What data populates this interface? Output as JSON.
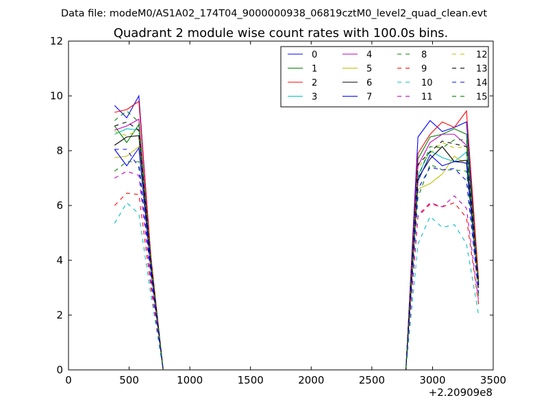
{
  "figure": {
    "suptitle": "Data file: modeM0/AS1A02_174T04_9000000938_06819cztM0_level2_quad_clean.evt"
  },
  "chart_data": {
    "type": "line",
    "title": "Quadrant 2 module wise count rates with 100.0s bins.",
    "xlabel": "",
    "ylabel": "",
    "x_offset_label": "+2.20909e8",
    "xlim": [
      0,
      3500
    ],
    "ylim": [
      0,
      12
    ],
    "xticks": [
      0,
      500,
      1000,
      1500,
      2000,
      2500,
      3000,
      3500
    ],
    "yticks": [
      0,
      2,
      4,
      6,
      8,
      10,
      12
    ],
    "grid": false,
    "legend": {
      "placement": "top-right",
      "columns": 4
    },
    "x": [
      380,
      480,
      580,
      680,
      780,
      880,
      980,
      1080,
      1180,
      1280,
      1380,
      1480,
      1580,
      1680,
      1780,
      1880,
      1980,
      2080,
      2180,
      2280,
      2380,
      2480,
      2580,
      2680,
      2780,
      2880,
      2980,
      3080,
      3180,
      3280,
      3380
    ],
    "series": [
      {
        "name": "0",
        "color": "#0000ff",
        "dash": "solid",
        "values": [
          9.65,
          9.2,
          10.0,
          4.0,
          0,
          0,
          0,
          0,
          0,
          0,
          0,
          0,
          0,
          0,
          0,
          0,
          0,
          0,
          0,
          0,
          0,
          0,
          0,
          0,
          0,
          8.5,
          9.1,
          8.7,
          8.85,
          9.05,
          3.2
        ]
      },
      {
        "name": "1",
        "color": "#008000",
        "dash": "solid",
        "values": [
          8.9,
          8.3,
          8.95,
          3.9,
          0,
          0,
          0,
          0,
          0,
          0,
          0,
          0,
          0,
          0,
          0,
          0,
          0,
          0,
          0,
          0,
          0,
          0,
          0,
          0,
          0,
          7.7,
          8.5,
          8.6,
          8.8,
          8.6,
          3.1
        ]
      },
      {
        "name": "2",
        "color": "#ff0000",
        "dash": "solid",
        "values": [
          9.4,
          9.5,
          9.8,
          4.1,
          0,
          0,
          0,
          0,
          0,
          0,
          0,
          0,
          0,
          0,
          0,
          0,
          0,
          0,
          0,
          0,
          0,
          0,
          0,
          0,
          0,
          7.9,
          8.6,
          9.05,
          8.85,
          9.45,
          3.3
        ]
      },
      {
        "name": "3",
        "color": "#00bfbf",
        "dash": "solid",
        "values": [
          8.6,
          8.8,
          8.75,
          3.9,
          0,
          0,
          0,
          0,
          0,
          0,
          0,
          0,
          0,
          0,
          0,
          0,
          0,
          0,
          0,
          0,
          0,
          0,
          0,
          0,
          0,
          7.1,
          8.0,
          7.75,
          7.6,
          7.95,
          3.0
        ]
      },
      {
        "name": "4",
        "color": "#bf00bf",
        "dash": "solid",
        "values": [
          8.75,
          8.9,
          9.15,
          3.9,
          0,
          0,
          0,
          0,
          0,
          0,
          0,
          0,
          0,
          0,
          0,
          0,
          0,
          0,
          0,
          0,
          0,
          0,
          0,
          0,
          0,
          7.45,
          8.3,
          8.6,
          8.6,
          8.2,
          3.1
        ]
      },
      {
        "name": "5",
        "color": "#bfbf00",
        "dash": "solid",
        "values": [
          7.75,
          7.8,
          8.15,
          3.6,
          0,
          0,
          0,
          0,
          0,
          0,
          0,
          0,
          0,
          0,
          0,
          0,
          0,
          0,
          0,
          0,
          0,
          0,
          0,
          0,
          0,
          6.6,
          6.8,
          7.15,
          7.8,
          7.5,
          3.0
        ]
      },
      {
        "name": "6",
        "color": "#000000",
        "dash": "solid",
        "values": [
          8.2,
          8.5,
          8.55,
          3.7,
          0,
          0,
          0,
          0,
          0,
          0,
          0,
          0,
          0,
          0,
          0,
          0,
          0,
          0,
          0,
          0,
          0,
          0,
          0,
          0,
          0,
          7.0,
          7.7,
          8.15,
          7.6,
          7.65,
          3.15
        ]
      },
      {
        "name": "7",
        "color": "#0000ff",
        "dash": "solid",
        "values": [
          8.05,
          7.45,
          8.1,
          3.6,
          0,
          0,
          0,
          0,
          0,
          0,
          0,
          0,
          0,
          0,
          0,
          0,
          0,
          0,
          0,
          0,
          0,
          0,
          0,
          0,
          0,
          6.9,
          7.85,
          7.45,
          7.6,
          7.55,
          3.0
        ]
      },
      {
        "name": "8",
        "color": "#008000",
        "dash": "dashed",
        "values": [
          7.25,
          7.6,
          7.6,
          3.4,
          0,
          0,
          0,
          0,
          0,
          0,
          0,
          0,
          0,
          0,
          0,
          0,
          0,
          0,
          0,
          0,
          0,
          0,
          0,
          0,
          0,
          6.3,
          7.5,
          7.3,
          7.3,
          7.25,
          2.7
        ]
      },
      {
        "name": "9",
        "color": "#ff0000",
        "dash": "dashed",
        "values": [
          6.0,
          6.45,
          6.4,
          3.0,
          0,
          0,
          0,
          0,
          0,
          0,
          0,
          0,
          0,
          0,
          0,
          0,
          0,
          0,
          0,
          0,
          0,
          0,
          0,
          0,
          0,
          5.6,
          6.05,
          5.95,
          6.1,
          5.55,
          2.4
        ]
      },
      {
        "name": "10",
        "color": "#00bfbf",
        "dash": "dashed",
        "values": [
          5.35,
          6.1,
          5.7,
          2.7,
          0,
          0,
          0,
          0,
          0,
          0,
          0,
          0,
          0,
          0,
          0,
          0,
          0,
          0,
          0,
          0,
          0,
          0,
          0,
          0,
          0,
          4.6,
          5.6,
          5.2,
          5.3,
          4.6,
          2.0
        ]
      },
      {
        "name": "11",
        "color": "#bf00bf",
        "dash": "dashed",
        "values": [
          7.0,
          7.25,
          7.1,
          3.2,
          0,
          0,
          0,
          0,
          0,
          0,
          0,
          0,
          0,
          0,
          0,
          0,
          0,
          0,
          0,
          0,
          0,
          0,
          0,
          0,
          0,
          5.65,
          6.1,
          5.95,
          6.35,
          5.9,
          2.5
        ]
      },
      {
        "name": "12",
        "color": "#bfbf00",
        "dash": "dashed",
        "values": [
          8.7,
          8.55,
          8.75,
          3.8,
          0,
          0,
          0,
          0,
          0,
          0,
          0,
          0,
          0,
          0,
          0,
          0,
          0,
          0,
          0,
          0,
          0,
          0,
          0,
          0,
          0,
          7.4,
          7.9,
          8.3,
          8.1,
          8.15,
          3.05
        ]
      },
      {
        "name": "13",
        "color": "#000000",
        "dash": "dashed",
        "values": [
          8.9,
          9.05,
          8.75,
          3.9,
          0,
          0,
          0,
          0,
          0,
          0,
          0,
          0,
          0,
          0,
          0,
          0,
          0,
          0,
          0,
          0,
          0,
          0,
          0,
          0,
          0,
          7.5,
          7.95,
          8.35,
          8.25,
          8.15,
          3.1
        ]
      },
      {
        "name": "14",
        "color": "#0000ff",
        "dash": "dashed",
        "values": [
          8.05,
          8.05,
          7.4,
          3.5,
          0,
          0,
          0,
          0,
          0,
          0,
          0,
          0,
          0,
          0,
          0,
          0,
          0,
          0,
          0,
          0,
          0,
          0,
          0,
          0,
          0,
          6.6,
          7.4,
          7.3,
          7.35,
          6.9,
          2.8
        ]
      },
      {
        "name": "15",
        "color": "#008000",
        "dash": "dashed",
        "values": [
          9.1,
          9.45,
          9.05,
          4.0,
          0,
          0,
          0,
          0,
          0,
          0,
          0,
          0,
          0,
          0,
          0,
          0,
          0,
          0,
          0,
          0,
          0,
          0,
          0,
          0,
          0,
          7.0,
          8.15,
          8.1,
          8.4,
          8.4,
          3.2
        ]
      }
    ]
  }
}
